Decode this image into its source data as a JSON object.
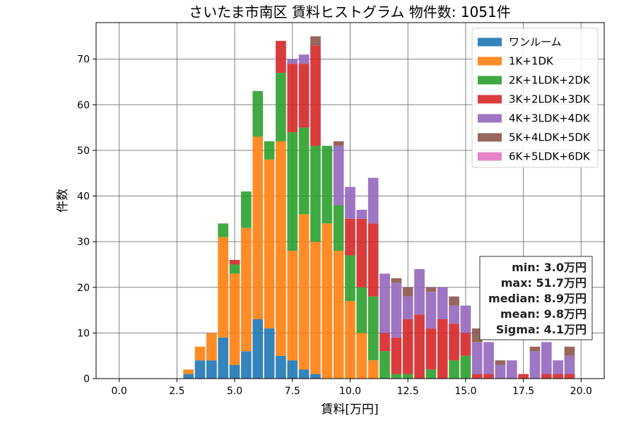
{
  "chart_data": {
    "type": "bar",
    "stacked": true,
    "title": "さいたま市南区 賃料ヒストグラム 物件数: 1051件",
    "xlabel": "賃料[万円]",
    "ylabel": "件数",
    "xlim": [
      -1,
      21
    ],
    "ylim": [
      0,
      78
    ],
    "xticks": [
      0.0,
      2.5,
      5.0,
      7.5,
      10.0,
      12.5,
      15.0,
      17.5,
      20.0
    ],
    "xtick_labels": [
      "0.0",
      "2.5",
      "5.0",
      "7.5",
      "10.0",
      "12.5",
      "15.0",
      "17.5",
      "20.0"
    ],
    "yticks": [
      0,
      10,
      20,
      30,
      40,
      50,
      60,
      70
    ],
    "ytick_labels": [
      "0",
      "10",
      "20",
      "30",
      "40",
      "50",
      "60",
      "70"
    ],
    "grid": true,
    "legend_position": "top-right",
    "bin_width": 0.5,
    "bins": [
      3.0,
      3.5,
      4.0,
      4.5,
      5.0,
      5.5,
      6.0,
      6.5,
      7.0,
      7.5,
      8.0,
      8.5,
      9.0,
      9.5,
      10.0,
      10.5,
      11.0,
      11.5,
      12.0,
      12.5,
      13.0,
      13.5,
      14.0,
      14.5,
      15.0,
      15.5,
      16.0,
      16.5,
      17.0,
      17.5,
      18.0,
      18.5,
      19.0,
      19.5
    ],
    "series": [
      {
        "name": "ワンルーム",
        "color": "#1f77b4",
        "values": [
          1,
          4,
          4,
          9,
          3,
          6,
          13,
          11,
          5,
          4,
          2,
          1,
          0,
          0,
          0,
          0,
          0,
          0,
          0,
          0,
          0,
          0,
          0,
          0,
          0,
          0,
          0,
          0,
          0,
          0,
          0,
          0,
          0,
          0
        ]
      },
      {
        "name": "1K+1DK",
        "color": "#ff7f0e",
        "values": [
          1,
          3,
          6,
          22,
          20,
          27,
          40,
          37,
          47,
          24,
          34,
          29,
          34,
          28,
          17,
          10,
          4,
          0,
          0,
          0,
          0,
          0,
          0,
          0,
          0,
          0,
          0,
          0,
          0,
          0,
          0,
          0,
          0,
          0
        ]
      },
      {
        "name": "2K+1LDK+2DK",
        "color": "#2ca02c",
        "values": [
          0,
          0,
          0,
          3,
          2,
          8,
          10,
          4,
          15,
          26,
          19,
          21,
          17,
          10,
          10,
          10,
          14,
          6,
          1,
          1,
          0,
          2,
          0,
          4,
          5,
          0,
          0,
          0,
          0,
          0,
          0,
          0,
          0,
          0
        ]
      },
      {
        "name": "3K+2LDK+3DK",
        "color": "#d62728",
        "values": [
          0,
          0,
          0,
          0,
          1,
          0,
          0,
          0,
          7,
          15,
          14,
          22,
          0,
          0,
          8,
          15,
          16,
          4,
          8,
          12,
          14,
          9,
          13,
          8,
          5,
          1,
          1,
          0,
          0,
          1,
          0,
          1,
          1,
          1
        ]
      },
      {
        "name": "4K+3LDK+4DK",
        "color": "#9467bd",
        "values": [
          0,
          0,
          0,
          0,
          0,
          0,
          0,
          0,
          0,
          1,
          2,
          0,
          0,
          13,
          7,
          2,
          10,
          13,
          12,
          5,
          10,
          8,
          7,
          4,
          6,
          7,
          7,
          3,
          4,
          0,
          6,
          7,
          3,
          4
        ]
      },
      {
        "name": "5K+4LDK+5DK",
        "color": "#8c564b",
        "values": [
          0,
          0,
          0,
          0,
          0,
          0,
          0,
          0,
          0,
          0,
          0,
          2,
          0,
          1,
          0,
          0,
          0,
          0,
          1,
          2,
          0,
          1,
          0,
          2,
          0,
          3,
          0,
          1,
          0,
          0,
          1,
          0,
          0,
          2
        ]
      },
      {
        "name": "6K+5LDK+6DK",
        "color": "#e377c2",
        "values": [
          0,
          0,
          0,
          0,
          0,
          0,
          0,
          0,
          0,
          0,
          0,
          0,
          0,
          0,
          0,
          0,
          0,
          0,
          0,
          0,
          0,
          0,
          0,
          0,
          0,
          0,
          0,
          0,
          0,
          0,
          0,
          0,
          0,
          0
        ]
      }
    ],
    "stats": {
      "lines": [
        "min: 3.0万円",
        "max: 51.7万円",
        "median: 8.9万円",
        "mean: 9.8万円",
        "Sigma: 4.1万円"
      ]
    }
  }
}
